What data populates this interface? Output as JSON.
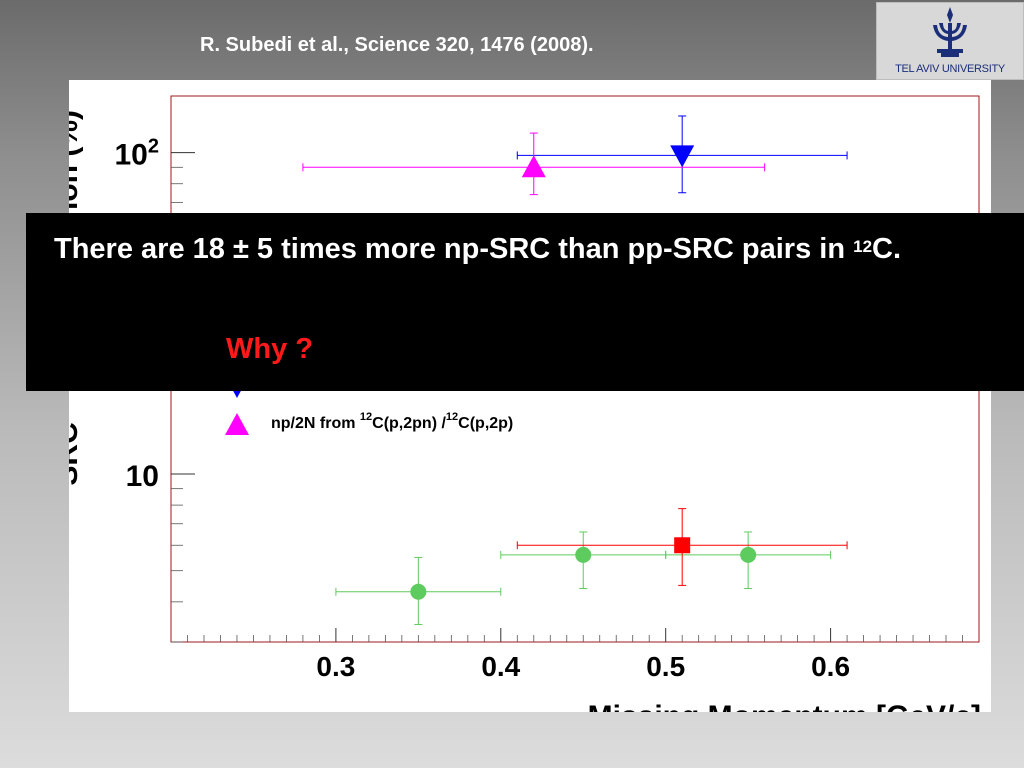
{
  "citation": "R. Subedi et al., Science 320, 1476 (2008).",
  "logo": {
    "text": "TEL AVIV UNIVERSITY",
    "color": "#1b2e7a"
  },
  "callout": {
    "text_before": "There are 18 ± 5 times more np-SRC than pp-SRC pairs in ",
    "superscript": "12",
    "text_after": "C.",
    "why": "Why ?",
    "why_color": "#ff1a1a"
  },
  "chart_data": {
    "type": "scatter",
    "xlabel": "Missing Momentum [GeV/c]",
    "ylabel_visible": "SRC",
    "ylabel_visible_top": "ion (%)",
    "xlim": [
      0.2,
      0.69
    ],
    "ylim": [
      3,
      150
    ],
    "yscale": "log",
    "xticks": [
      0.3,
      0.4,
      0.5,
      0.6
    ],
    "xtick_labels": [
      "0.3",
      "0.4",
      "0.5",
      "0.6"
    ],
    "ytick_labels": [
      {
        "value": 10,
        "base": "10",
        "exp": ""
      },
      {
        "value": 100,
        "base": "10",
        "exp": "2"
      }
    ],
    "legend_entries": [
      {
        "marker": "triangle-down",
        "color": "#0000ff",
        "text": ""
      },
      {
        "marker": "triangle-up",
        "color": "#ff00ff",
        "pre": "np/2N from ",
        "sup1": "12",
        "mid": "C(p,2pn) /",
        "sup2": "12",
        "post": "C(p,2p)"
      }
    ],
    "series": [
      {
        "marker": "triangle-down",
        "color": "#0000ff",
        "points": [
          {
            "x": 0.51,
            "y": 98,
            "xerr": [
              0.41,
              0.61
            ],
            "yerr": [
              75,
              130
            ]
          }
        ]
      },
      {
        "marker": "triangle-up",
        "color": "#ff00ff",
        "points": [
          {
            "x": 0.42,
            "y": 90,
            "xerr": [
              0.28,
              0.56
            ],
            "yerr": [
              74,
              115
            ]
          }
        ]
      },
      {
        "marker": "circle",
        "color": "#5ecb5e",
        "points": [
          {
            "x": 0.35,
            "y": 4.3,
            "xerr": [
              0.3,
              0.4
            ],
            "yerr": [
              3.4,
              5.5
            ]
          },
          {
            "x": 0.45,
            "y": 5.6,
            "xerr": [
              0.4,
              0.5
            ],
            "yerr": [
              4.4,
              6.6
            ]
          },
          {
            "x": 0.55,
            "y": 5.6,
            "xerr": [
              0.5,
              0.6
            ],
            "yerr": [
              4.4,
              6.6
            ]
          }
        ]
      },
      {
        "marker": "square",
        "color": "#ff0000",
        "points": [
          {
            "x": 0.51,
            "y": 6.0,
            "xerr": [
              0.41,
              0.61
            ],
            "yerr": [
              4.5,
              7.8
            ]
          }
        ]
      }
    ]
  }
}
